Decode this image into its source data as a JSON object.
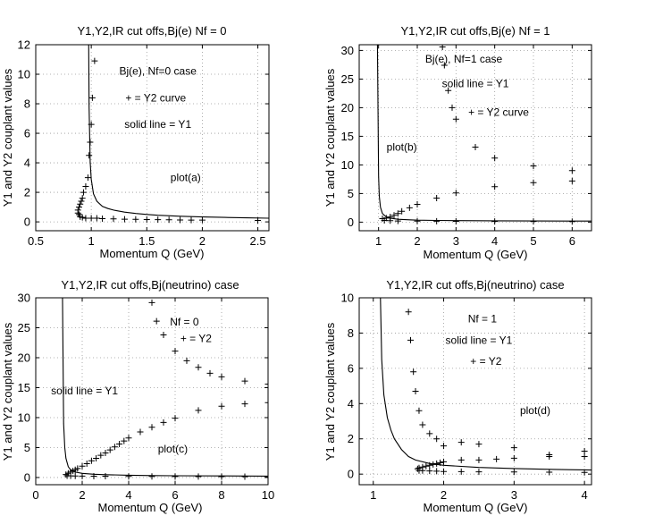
{
  "chart_data": [
    {
      "type": "line",
      "title": "Y1,Y2,IR cut offs,Bj(e) Nf = 0",
      "xlabel": "Momentum Q (GeV)",
      "ylabel": "Y1 and Y2 couplant values",
      "xlim": [
        0.5,
        2.6
      ],
      "ylim": [
        -0.6,
        12
      ],
      "xticks": [
        0.5,
        1,
        1.5,
        2,
        2.5
      ],
      "yticks": [
        0,
        2,
        4,
        6,
        8,
        10,
        12
      ],
      "xtick_labels": [
        "0.5",
        "1",
        "1.5",
        "2",
        "2.5"
      ],
      "ytick_labels": [
        "0",
        "2",
        "4",
        "6",
        "8",
        "10",
        "12"
      ],
      "grid": true,
      "annotations": [
        {
          "text": "Bj(e), Nf=0 case",
          "x": 1.6,
          "y": 10.2
        },
        {
          "text": "+ = Y2 curve",
          "x": 1.58,
          "y": 8.4
        },
        {
          "text": "solid line = Y1",
          "x": 1.6,
          "y": 6.6
        },
        {
          "text": "plot(a)",
          "x": 1.85,
          "y": 3.0
        }
      ],
      "series": [
        {
          "name": "Y1",
          "style": "solid",
          "x": [
            0.976,
            0.98,
            0.99,
            1.0,
            1.02,
            1.05,
            1.1,
            1.15,
            1.2,
            1.3,
            1.4,
            1.5,
            1.6,
            1.8,
            2.0,
            2.2,
            2.4,
            2.6
          ],
          "y": [
            12.5,
            7.8,
            4.1,
            2.9,
            1.9,
            1.4,
            1.05,
            0.9,
            0.8,
            0.66,
            0.57,
            0.5,
            0.45,
            0.38,
            0.33,
            0.3,
            0.27,
            0.25
          ]
        },
        {
          "name": "Y2",
          "style": "plus",
          "x": [
            0.88,
            0.88,
            0.89,
            0.9,
            0.91,
            0.92,
            0.93,
            0.95,
            0.97,
            0.98,
            0.99,
            1.0,
            1.01,
            1.03,
            0.89,
            0.9,
            0.92,
            0.95,
            1.0,
            1.05,
            1.1,
            1.2,
            1.3,
            1.4,
            1.5,
            1.6,
            1.7,
            1.8,
            1.9,
            2.0,
            2.5
          ],
          "y": [
            0.6,
            0.8,
            1.0,
            1.2,
            1.4,
            1.6,
            2.0,
            2.4,
            3.0,
            4.5,
            5.4,
            6.6,
            8.4,
            10.9,
            0.5,
            0.35,
            0.3,
            0.25,
            0.25,
            0.25,
            0.22,
            0.2,
            0.18,
            0.17,
            0.16,
            0.15,
            0.14,
            0.13,
            0.12,
            0.12,
            0.1
          ]
        }
      ]
    },
    {
      "type": "line",
      "title": "Y1,Y2,IR cut offs,Bj(e) Nf = 1",
      "xlabel": "Momentum Q (GeV)",
      "ylabel": "Y1 and Y2 couplant values",
      "xlim": [
        0.5,
        6.5
      ],
      "ylim": [
        -1.5,
        31
      ],
      "xticks": [
        1,
        2,
        3,
        4,
        5,
        6
      ],
      "yticks": [
        0,
        5,
        10,
        15,
        20,
        25,
        30
      ],
      "xtick_labels": [
        "1",
        "2",
        "3",
        "4",
        "5",
        "6"
      ],
      "ytick_labels": [
        "0",
        "5",
        "10",
        "15",
        "20",
        "25",
        "30"
      ],
      "grid": true,
      "annotations": [
        {
          "text": "Bj(e), Nf=1 case",
          "x": 3.2,
          "y": 28.5
        },
        {
          "text": "solid line = Y1",
          "x": 3.5,
          "y": 24.2
        },
        {
          "text": "+ = Y2 curve",
          "x": 4.1,
          "y": 19.2
        },
        {
          "text": "plot(b)",
          "x": 1.6,
          "y": 13.1
        }
      ],
      "series": [
        {
          "name": "Y1",
          "style": "solid",
          "x": [
            0.97,
            1.0,
            1.02,
            1.05,
            1.1,
            1.2,
            1.3,
            1.5,
            1.8,
            2.0,
            2.5,
            3.0,
            4.0,
            5.0,
            6.5
          ],
          "y": [
            31.5,
            8.0,
            4.5,
            2.6,
            1.5,
            0.9,
            0.7,
            0.5,
            0.4,
            0.35,
            0.3,
            0.27,
            0.23,
            0.2,
            0.18
          ]
        },
        {
          "name": "Y2",
          "style": "plus",
          "x": [
            2.65,
            2.7,
            2.8,
            2.9,
            3.0,
            3.5,
            4.0,
            5.0,
            6.0,
            1.1,
            1.2,
            1.3,
            1.4,
            1.5,
            1.6,
            1.8,
            2.0,
            2.5,
            3.0,
            4.0,
            5.0,
            6.0,
            1.15,
            1.3,
            1.5,
            2.0,
            2.5,
            3.0,
            4.0,
            5.0,
            6.0
          ],
          "y": [
            30.6,
            27.4,
            23.0,
            20.0,
            18.0,
            13.1,
            11.2,
            9.8,
            9.0,
            0.6,
            0.7,
            0.9,
            1.2,
            1.5,
            1.9,
            2.5,
            3.1,
            4.2,
            5.1,
            6.2,
            6.9,
            7.2,
            0.3,
            0.25,
            0.2,
            0.18,
            0.16,
            0.15,
            0.13,
            0.12,
            0.11
          ]
        }
      ]
    },
    {
      "type": "line",
      "title": "Y1,Y2,IR cut offs,Bj(neutrino) case",
      "xlabel": "Momentum Q (GeV)",
      "ylabel": "Y1 and Y2 couplant values",
      "xlim": [
        0,
        10
      ],
      "ylim": [
        -1.2,
        30
      ],
      "xticks": [
        0,
        2,
        4,
        6,
        8,
        10
      ],
      "yticks": [
        0,
        5,
        10,
        15,
        20,
        25,
        30
      ],
      "xtick_labels": [
        "0",
        "2",
        "4",
        "6",
        "8",
        "10"
      ],
      "ytick_labels": [
        "0",
        "5",
        "10",
        "15",
        "20",
        "25",
        "30"
      ],
      "grid": true,
      "annotations": [
        {
          "text": "Nf = 0",
          "x": 6.4,
          "y": 26.0
        },
        {
          "text": "+ = Y2",
          "x": 6.9,
          "y": 23.2
        },
        {
          "text": "solid line = Y1",
          "x": 2.1,
          "y": 14.5
        },
        {
          "text": "plot(c)",
          "x": 5.9,
          "y": 4.8
        }
      ],
      "series": [
        {
          "name": "Y1",
          "style": "solid",
          "x": [
            1.15,
            1.2,
            1.25,
            1.3,
            1.4,
            1.5,
            1.7,
            2.0,
            2.5,
            3.0,
            4.0,
            5.0,
            6.0,
            8.0,
            10.0
          ],
          "y": [
            31,
            9.0,
            5.0,
            3.2,
            1.8,
            1.3,
            0.9,
            0.7,
            0.55,
            0.47,
            0.38,
            0.33,
            0.3,
            0.26,
            0.23
          ]
        },
        {
          "name": "Y2",
          "style": "plus",
          "x": [
            5.0,
            5.2,
            5.5,
            6.0,
            6.5,
            7.0,
            7.5,
            8.0,
            9.0,
            10.0,
            1.3,
            1.4,
            1.5,
            1.6,
            1.7,
            1.8,
            2.0,
            2.2,
            2.4,
            2.6,
            2.8,
            3.0,
            3.2,
            3.4,
            3.6,
            3.8,
            4.0,
            4.5,
            5.0,
            5.5,
            6.0,
            7.0,
            8.0,
            9.0,
            10.0,
            1.35,
            1.5,
            1.7,
            2.0,
            2.5,
            3.0,
            4.0,
            5.0,
            6.0,
            7.0,
            8.0,
            9.0,
            10.0
          ],
          "y": [
            29.2,
            26.1,
            23.8,
            21.1,
            19.5,
            18.4,
            17.4,
            16.8,
            16.1,
            15.6,
            0.5,
            0.7,
            0.9,
            1.1,
            1.3,
            1.5,
            1.9,
            2.3,
            2.8,
            3.2,
            3.7,
            4.1,
            4.6,
            5.1,
            5.6,
            6.1,
            6.6,
            7.6,
            8.4,
            9.2,
            9.9,
            11.2,
            11.9,
            12.3,
            12.5,
            0.3,
            0.28,
            0.26,
            0.24,
            0.22,
            0.21,
            0.19,
            0.18,
            0.17,
            0.16,
            0.15,
            0.14,
            0.14
          ]
        }
      ]
    },
    {
      "type": "line",
      "title": "Y1,Y2,IR cut offs,Bj(neutrino) case",
      "xlabel": "Momentum Q (GeV)",
      "ylabel": "Y1 and Y2 couplant values",
      "xlim": [
        0.8,
        4.1
      ],
      "ylim": [
        -0.6,
        10
      ],
      "xticks": [
        1,
        2,
        3,
        4
      ],
      "yticks": [
        0,
        2,
        4,
        6,
        8,
        10
      ],
      "xtick_labels": [
        "1",
        "2",
        "3",
        "4"
      ],
      "ytick_labels": [
        "0",
        "2",
        "4",
        "6",
        "8",
        "10"
      ],
      "grid": true,
      "annotations": [
        {
          "text": "Nf = 1",
          "x": 2.55,
          "y": 8.8
        },
        {
          "text": "solid line = Y1",
          "x": 2.5,
          "y": 7.6
        },
        {
          "text": "+ = Y2",
          "x": 2.6,
          "y": 6.4
        },
        {
          "text": "plot(d)",
          "x": 3.3,
          "y": 3.6
        }
      ],
      "series": [
        {
          "name": "Y1",
          "style": "solid",
          "x": [
            1.1,
            1.12,
            1.15,
            1.2,
            1.25,
            1.3,
            1.4,
            1.5,
            1.6,
            1.8,
            2.0,
            2.5,
            3.0,
            3.5,
            4.1
          ],
          "y": [
            10.4,
            6.5,
            4.5,
            3.2,
            2.5,
            2.0,
            1.4,
            1.0,
            0.8,
            0.6,
            0.5,
            0.38,
            0.32,
            0.27,
            0.23
          ]
        },
        {
          "name": "Y2",
          "style": "plus",
          "x": [
            1.5,
            1.53,
            1.57,
            1.6,
            1.65,
            1.7,
            1.8,
            1.9,
            2.0,
            2.25,
            2.5,
            3.0,
            3.5,
            4.0,
            1.63,
            1.65,
            1.7,
            1.75,
            1.8,
            1.85,
            1.9,
            1.95,
            2.0,
            2.25,
            2.5,
            2.75,
            3.0,
            3.5,
            4.0,
            1.65,
            1.7,
            1.8,
            1.9,
            2.0,
            2.25,
            2.5,
            3.0,
            3.5,
            4.0
          ],
          "y": [
            9.2,
            7.6,
            5.8,
            4.7,
            3.6,
            2.8,
            2.3,
            2.0,
            1.6,
            1.8,
            1.7,
            1.5,
            1.1,
            1.3,
            0.3,
            0.35,
            0.4,
            0.45,
            0.5,
            0.55,
            0.6,
            0.65,
            0.7,
            0.8,
            0.8,
            0.85,
            0.9,
            1.0,
            1.0,
            0.2,
            0.2,
            0.18,
            0.17,
            0.15,
            0.14,
            0.13,
            0.12,
            0.11,
            0.1
          ]
        }
      ]
    }
  ]
}
